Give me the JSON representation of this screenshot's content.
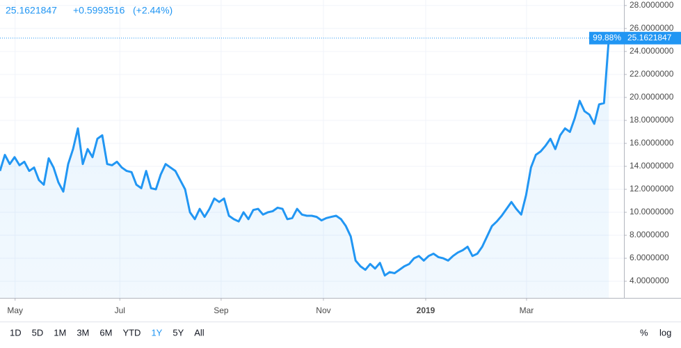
{
  "chart_data": {
    "type": "line",
    "header": {
      "change": "+0.5993516",
      "change_percent": "(+2.44%)"
    },
    "price_percent_label": "99.88%",
    "series": [
      {
        "color": "#2196f3",
        "values": [
          13.6,
          15.0,
          14.2,
          14.8,
          14.1,
          14.4,
          13.6,
          13.9,
          12.8,
          12.4,
          14.7,
          13.9,
          12.6,
          11.8,
          14.2,
          15.5,
          17.3,
          14.2,
          15.5,
          14.8,
          16.4,
          16.7,
          14.2,
          14.1,
          14.4,
          13.9,
          13.6,
          13.5,
          12.4,
          12.1,
          13.6,
          12.1,
          12.0,
          13.3,
          14.2,
          13.9,
          13.6,
          12.8,
          12.0,
          10.0,
          9.4,
          10.3,
          9.6,
          10.3,
          11.2,
          10.9,
          11.2,
          9.7,
          9.4,
          9.2,
          10.0,
          9.4,
          10.2,
          10.3,
          9.8,
          10.0,
          10.1,
          10.4,
          10.3,
          9.4,
          9.5,
          10.3,
          9.8,
          9.7,
          9.7,
          9.6,
          9.3,
          9.5,
          9.6,
          9.7,
          9.4,
          8.8,
          7.9,
          5.8,
          5.3,
          5.0,
          5.5,
          5.1,
          5.6,
          4.5,
          4.8,
          4.7,
          5.0,
          5.3,
          5.5,
          6.0,
          6.2,
          5.8,
          6.2,
          6.4,
          6.1,
          6.0,
          5.8,
          6.2,
          6.5,
          6.7,
          7.0,
          6.2,
          6.4,
          7.0,
          7.9,
          8.8,
          9.2,
          9.7,
          10.3,
          10.9,
          10.3,
          9.8,
          11.5,
          13.9,
          15.0,
          15.3,
          15.8,
          16.4,
          15.5,
          16.7,
          17.3,
          17.0,
          18.2,
          19.7,
          18.8,
          18.5,
          17.7,
          19.4,
          19.5,
          25.1621847
        ]
      }
    ],
    "xlim": [
      0,
      128.1
    ],
    "xticks": [
      {
        "value": 3.1,
        "label": "May"
      },
      {
        "value": 24.6,
        "label": "Jul"
      },
      {
        "value": 45.4,
        "label": "Sep"
      },
      {
        "value": 66.4,
        "label": "Nov"
      },
      {
        "value": 87.4,
        "label": "2019"
      },
      {
        "value": 108.1,
        "label": "Mar"
      }
    ],
    "ylim": [
      2.55,
      28.48
    ],
    "yticks": [
      {
        "value": 4,
        "label": "4.0000000"
      },
      {
        "value": 6,
        "label": "6.0000000"
      },
      {
        "value": 8,
        "label": "8.0000000"
      },
      {
        "value": 10,
        "label": "10.0000000"
      },
      {
        "value": 12,
        "label": "12.0000000"
      },
      {
        "value": 14,
        "label": "14.0000000"
      },
      {
        "value": 16,
        "label": "16.0000000"
      },
      {
        "value": 18,
        "label": "18.0000000"
      },
      {
        "value": 20,
        "label": "20.0000000"
      },
      {
        "value": 22,
        "label": "22.0000000"
      },
      {
        "value": 24,
        "label": "24.0000000"
      },
      {
        "value": 26,
        "label": "26.0000000"
      },
      {
        "value": 28,
        "label": "28.0000000"
      }
    ],
    "grid": true,
    "log_scale": false,
    "ranges": [
      "1D",
      "5D",
      "1M",
      "3M",
      "6M",
      "YTD",
      "1Y",
      "5Y",
      "All"
    ],
    "active_range": 6,
    "options": [
      "%",
      "log"
    ]
  }
}
